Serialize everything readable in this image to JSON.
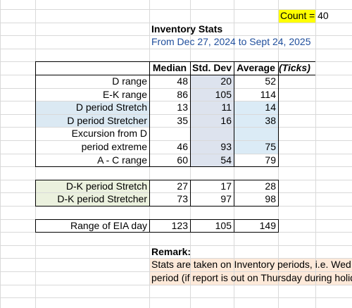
{
  "header": {
    "count_label": "Count",
    "count_value": "= 40",
    "title": "Inventory Stats",
    "subtitle": "From Dec 27, 2024 to Sept 24,  2025"
  },
  "table": {
    "columns": [
      "Median",
      "Std. Dev",
      "Average",
      "(Ticks)"
    ],
    "groups": [
      {
        "rows": [
          {
            "label": [
              "D range"
            ],
            "values": [
              48,
              20,
              52
            ]
          },
          {
            "label": [
              "E-K range"
            ],
            "values": [
              86,
              105,
              114
            ]
          },
          {
            "label": [
              "D period Stretch"
            ],
            "values": [
              13,
              11,
              14
            ]
          },
          {
            "label": [
              "D period Stretcher"
            ],
            "values": [
              35,
              16,
              38
            ]
          },
          {
            "label": [
              "Excursion from D",
              "period extreme"
            ],
            "values": [
              46,
              93,
              75
            ]
          },
          {
            "label": [
              "A - C range"
            ],
            "values": [
              60,
              54,
              79
            ]
          }
        ]
      },
      {
        "rows": [
          {
            "label": [
              "D-K period Stretch"
            ],
            "values": [
              27,
              17,
              28
            ]
          },
          {
            "label": [
              "D-K period Stretcher"
            ],
            "values": [
              73,
              97,
              98
            ]
          }
        ]
      },
      {
        "rows": [
          {
            "label": [
              "Range of EIA day"
            ],
            "values": [
              123,
              105,
              149
            ]
          }
        ]
      }
    ]
  },
  "remark": {
    "title": "Remark:",
    "lines": [
      "Stats are taken on Inventory periods, i.e. Wed D period/Thurs E",
      "period (if report is out on Thursday during holiday week)"
    ]
  }
}
